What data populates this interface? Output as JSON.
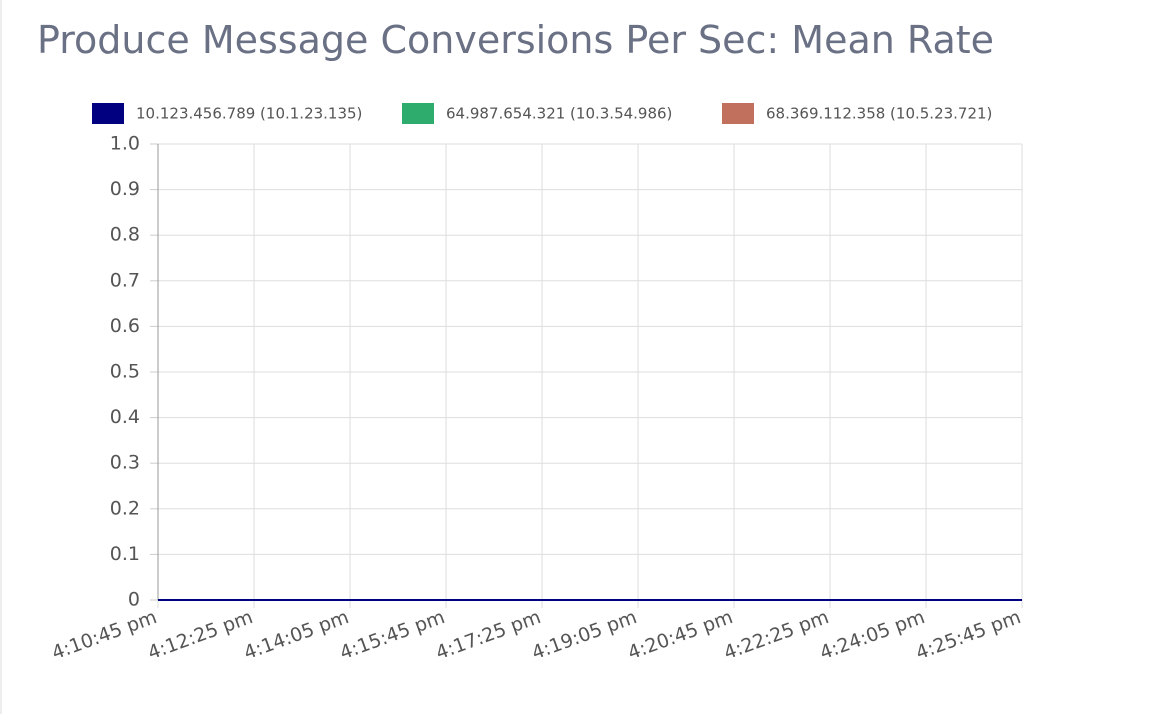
{
  "chart_data": {
    "type": "line",
    "title": "Produce Message Conversions Per Sec: Mean Rate",
    "categories": [
      "4:10:45 pm",
      "4:12:25 pm",
      "4:14:05 pm",
      "4:15:45 pm",
      "4:17:25 pm",
      "4:19:05 pm",
      "4:20:45 pm",
      "4:22:25 pm",
      "4:24:05 pm",
      "4:25:45 pm"
    ],
    "series": [
      {
        "name": "10.123.456.789 (10.1.23.135)",
        "color": "#000080",
        "values": [
          0,
          0,
          0,
          0,
          0,
          0,
          0,
          0,
          0,
          0
        ]
      },
      {
        "name": "64.987.654.321 (10.3.54.986)",
        "color": "#2eac6d",
        "values": [
          0,
          0,
          0,
          0,
          0,
          0,
          0,
          0,
          0,
          0
        ]
      },
      {
        "name": "68.369.112.358 (10.5.23.721)",
        "color": "#c0705c",
        "values": [
          0,
          0,
          0,
          0,
          0,
          0,
          0,
          0,
          0,
          0
        ]
      }
    ],
    "ylim": [
      0,
      1
    ],
    "yticks": [
      0,
      0.1,
      0.2,
      0.3,
      0.4,
      0.5,
      0.6,
      0.7,
      0.8,
      0.9,
      {
        "value": 1,
        "label": "1.0"
      }
    ],
    "grid": true
  }
}
